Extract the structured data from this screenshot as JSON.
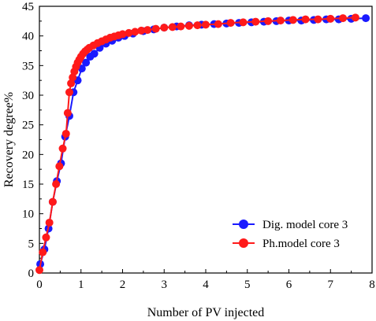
{
  "chart_data": {
    "type": "line",
    "title": "",
    "xlabel": "Number of PV injected",
    "ylabel": "Recovery degree%",
    "xlim": [
      0,
      8
    ],
    "ylim": [
      0,
      45
    ],
    "xticks": [
      "0",
      "1",
      "2",
      "3",
      "4",
      "5",
      "6",
      "7",
      "8"
    ],
    "yticks": [
      "0",
      "5",
      "10",
      "15",
      "20",
      "25",
      "30",
      "35",
      "40",
      "45"
    ],
    "grid": false,
    "legend_position": "bottom-right",
    "series": [
      {
        "name": "Dig. model core 3",
        "color": "#1a1aff",
        "marker": "circle",
        "x": [
          0.02,
          0.12,
          0.22,
          0.32,
          0.42,
          0.52,
          0.62,
          0.72,
          0.82,
          0.92,
          1.02,
          1.12,
          1.22,
          1.32,
          1.45,
          1.6,
          1.75,
          1.9,
          2.05,
          2.25,
          2.5,
          2.75,
          3.0,
          3.3,
          3.6,
          3.9,
          4.2,
          4.5,
          4.8,
          5.1,
          5.4,
          5.7,
          6.0,
          6.3,
          6.6,
          6.9,
          7.2,
          7.5,
          7.85
        ],
        "y": [
          1.5,
          4.0,
          7.5,
          12.0,
          15.5,
          18.5,
          23.0,
          26.5,
          30.5,
          32.5,
          34.5,
          35.5,
          36.5,
          37.0,
          38.0,
          38.7,
          39.2,
          39.7,
          40.0,
          40.4,
          40.8,
          41.1,
          41.4,
          41.6,
          41.8,
          41.9,
          42.0,
          42.1,
          42.2,
          42.3,
          42.4,
          42.5,
          42.6,
          42.6,
          42.7,
          42.8,
          42.8,
          42.9,
          43.0
        ]
      },
      {
        "name": "Ph.model core 3",
        "color": "#ff1a1a",
        "marker": "circle",
        "x": [
          0.0,
          0.08,
          0.16,
          0.24,
          0.32,
          0.4,
          0.48,
          0.56,
          0.64,
          0.68,
          0.72,
          0.76,
          0.8,
          0.84,
          0.88,
          0.92,
          0.96,
          1.0,
          1.05,
          1.1,
          1.15,
          1.2,
          1.3,
          1.4,
          1.5,
          1.6,
          1.7,
          1.8,
          1.9,
          2.0,
          2.15,
          2.3,
          2.45,
          2.6,
          2.8,
          3.0,
          3.2,
          3.4,
          3.6,
          3.8,
          4.0,
          4.3,
          4.6,
          4.9,
          5.2,
          5.5,
          5.8,
          6.1,
          6.4,
          6.7,
          7.0,
          7.3,
          7.6
        ],
        "y": [
          0.5,
          3.5,
          6.0,
          8.5,
          12.0,
          15.0,
          18.0,
          21.0,
          23.5,
          27.0,
          30.5,
          32.0,
          33.0,
          34.0,
          34.8,
          35.5,
          36.0,
          36.5,
          37.0,
          37.4,
          37.7,
          38.0,
          38.4,
          38.8,
          39.1,
          39.4,
          39.7,
          39.9,
          40.1,
          40.3,
          40.5,
          40.7,
          40.9,
          41.0,
          41.2,
          41.4,
          41.5,
          41.6,
          41.7,
          41.8,
          41.9,
          42.0,
          42.2,
          42.3,
          42.4,
          42.5,
          42.6,
          42.7,
          42.8,
          42.8,
          42.9,
          43.0,
          43.1
        ]
      }
    ]
  }
}
